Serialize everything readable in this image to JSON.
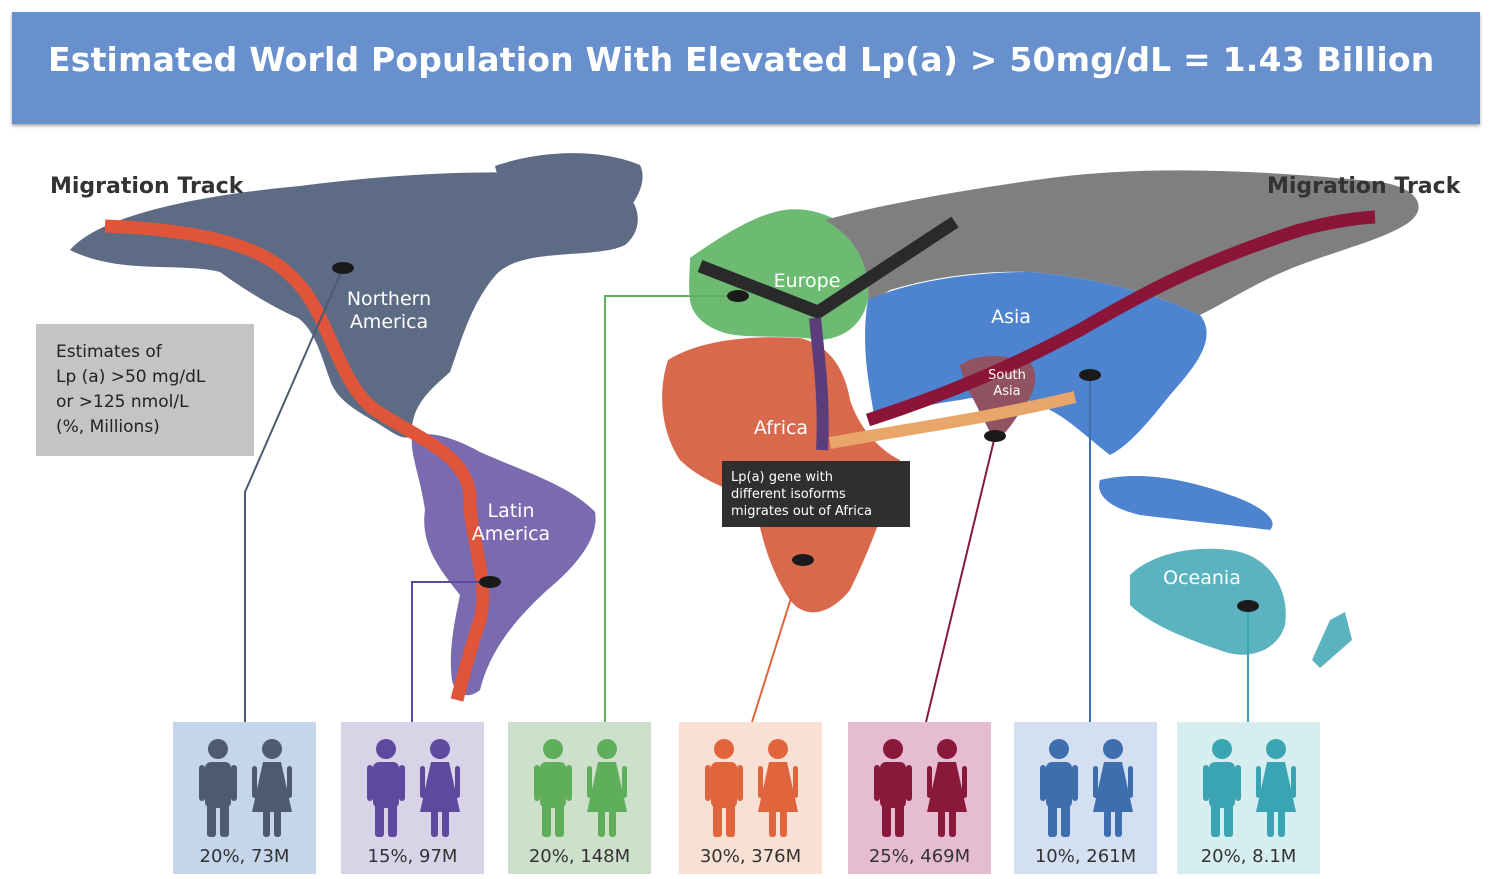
{
  "header": {
    "title": "Estimated World Population With Elevated Lp(a) > 50mg/dL = 1.43 Billion"
  },
  "migration": {
    "left_label": "Migration Track",
    "right_label": "Migration Track"
  },
  "legend_box": {
    "text": "Estimates of\nLp (a) >50 mg/dL\nor >125 nmol/L\n(%, Millions)"
  },
  "note_box": {
    "text": "Lp(a) gene with\ndifferent isoforms\nmigrates out of Africa"
  },
  "regions": {
    "north_america": {
      "label": "Northern\nAmerica",
      "color": "#5e6b84"
    },
    "latin_america": {
      "label": "Latin\nAmerica",
      "color": "#7a6bb0"
    },
    "europe": {
      "label": "Europe",
      "color": "#6dbb73"
    },
    "africa": {
      "label": "Africa",
      "color": "#d9694c"
    },
    "asia": {
      "label": "Asia",
      "color": "#4d83cf"
    },
    "south_asia": {
      "label": "South\nAsia",
      "color": "#915264"
    },
    "oceania": {
      "label": "Oceania",
      "color": "#5cb3c0"
    }
  },
  "panels": [
    {
      "id": "north-america",
      "stat": "20%, 73M",
      "color": "#4d5a72",
      "bg": "#c5d5ea"
    },
    {
      "id": "latin-america",
      "stat": "15%,  97M",
      "color": "#5c4a9e",
      "bg": "#d9d3e8"
    },
    {
      "id": "europe",
      "stat": "20%, 148M",
      "color": "#5fae5c",
      "bg": "#cde0cc"
    },
    {
      "id": "africa",
      "stat": "30%, 376M",
      "color": "#e0653d",
      "bg": "#f8e0d4"
    },
    {
      "id": "south-asia",
      "stat": "25%, 469M",
      "color": "#88193b",
      "bg": "#e6bcd0"
    },
    {
      "id": "asia",
      "stat": "10%, 261M",
      "color": "#3f6eae",
      "bg": "#d4e0f1"
    },
    {
      "id": "oceania",
      "stat": "20%, 8.1M",
      "color": "#3aa4b2",
      "bg": "#d6eef0"
    }
  ],
  "colors": {
    "banner": "#6790cc",
    "track_americas": "#e0553a",
    "track_asia": "#8a1538",
    "track_europe": "#2a2a2a",
    "track_south": "#e9a66a",
    "track_africa": "#5a3d7a",
    "russia": "#7f7f7f"
  }
}
